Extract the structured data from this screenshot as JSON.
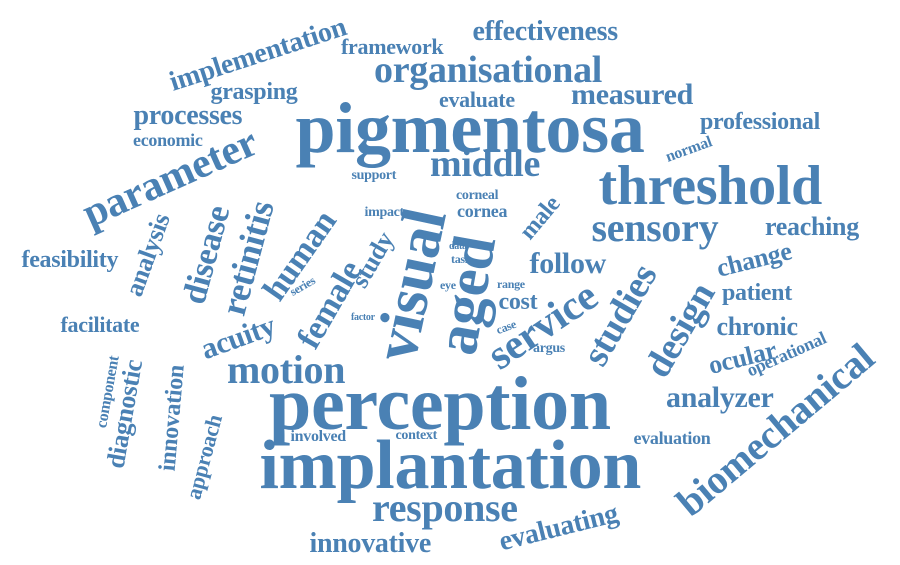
{
  "colors": {
    "word": "#4a81b4",
    "background": "#ffffff"
  },
  "words": [
    {
      "text": "pigmentosa"
    },
    {
      "text": "perception"
    },
    {
      "text": "implantation"
    },
    {
      "text": "threshold"
    },
    {
      "text": "visual"
    },
    {
      "text": "aged"
    },
    {
      "text": "organisational"
    },
    {
      "text": "sensory"
    },
    {
      "text": "service"
    },
    {
      "text": "biomechanical"
    },
    {
      "text": "parameter"
    },
    {
      "text": "response"
    },
    {
      "text": "middle"
    },
    {
      "text": "implementation"
    },
    {
      "text": "motion"
    },
    {
      "text": "studies"
    },
    {
      "text": "design"
    },
    {
      "text": "disease"
    },
    {
      "text": "retinitis"
    },
    {
      "text": "human"
    },
    {
      "text": "female"
    },
    {
      "text": "effectiveness"
    },
    {
      "text": "measured"
    },
    {
      "text": "follow"
    },
    {
      "text": "analyzer"
    },
    {
      "text": "acuity"
    },
    {
      "text": "processes"
    },
    {
      "text": "evaluating"
    },
    {
      "text": "innovative"
    },
    {
      "text": "professional"
    },
    {
      "text": "feasibility"
    },
    {
      "text": "grasping"
    },
    {
      "text": "evaluate"
    },
    {
      "text": "reaching"
    },
    {
      "text": "analysis"
    },
    {
      "text": "chronic"
    },
    {
      "text": "change"
    },
    {
      "text": "patient"
    },
    {
      "text": "ocular"
    },
    {
      "text": "facilitate"
    },
    {
      "text": "diagnostic"
    },
    {
      "text": "innovation"
    },
    {
      "text": "approach"
    },
    {
      "text": "operational"
    },
    {
      "text": "framework"
    },
    {
      "text": "study"
    },
    {
      "text": "cost"
    },
    {
      "text": "male"
    },
    {
      "text": "component"
    },
    {
      "text": "evaluation"
    },
    {
      "text": "economic"
    },
    {
      "text": "cornea"
    },
    {
      "text": "involved"
    },
    {
      "text": "normal"
    },
    {
      "text": "context"
    },
    {
      "text": "argus"
    },
    {
      "text": "support"
    },
    {
      "text": "corneal"
    },
    {
      "text": "impact"
    },
    {
      "text": "series"
    },
    {
      "text": "factor"
    },
    {
      "text": "case"
    },
    {
      "text": "range"
    },
    {
      "text": "task"
    },
    {
      "text": "eye"
    },
    {
      "text": "data"
    }
  ]
}
